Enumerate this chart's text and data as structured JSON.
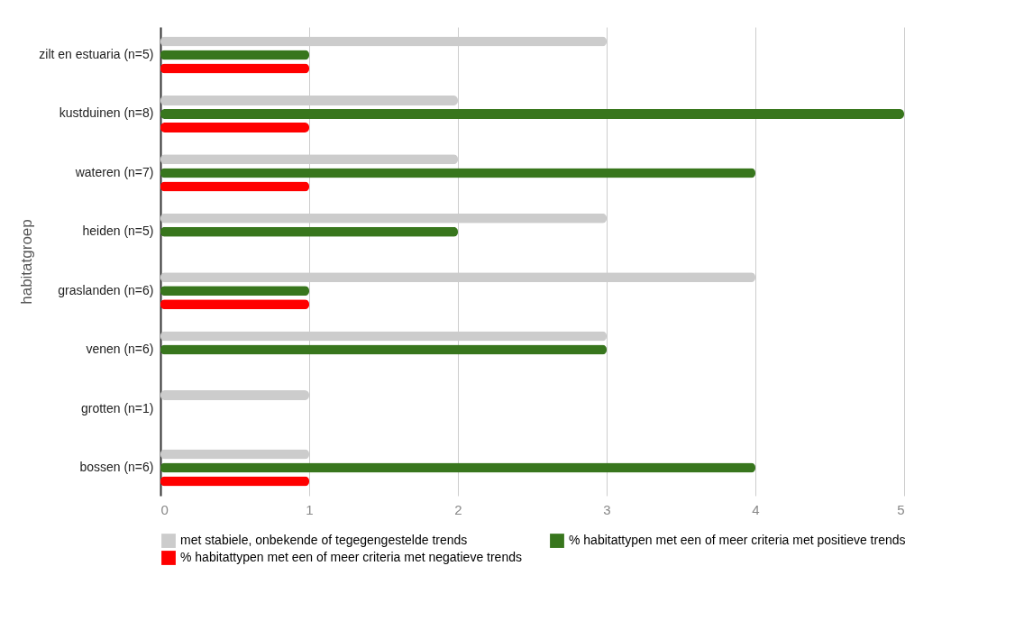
{
  "chart_data": {
    "type": "bar",
    "orientation": "horizontal",
    "ylabel": "habitatgroep",
    "categories": [
      "zilt en estuaria (n=5)",
      "kustduinen (n=8)",
      "wateren (n=7)",
      "heiden (n=5)",
      "graslanden (n=6)",
      "venen (n=6)",
      "grotten (n=1)",
      "bossen (n=6)"
    ],
    "series": [
      {
        "name": "met stabiele, onbekende of tegegengestelde trends",
        "color": "#cccccc",
        "values": [
          3,
          2,
          2,
          3,
          4,
          3,
          1,
          1
        ]
      },
      {
        "name": "% habitattypen met een of meer criteria met positieve trends",
        "color": "#38761d",
        "values": [
          1,
          5,
          4,
          2,
          1,
          3,
          null,
          4
        ]
      },
      {
        "name": "% habitattypen met een of meer criteria met negatieve trends",
        "color": "#ff0000",
        "values": [
          1,
          1,
          1,
          null,
          1,
          null,
          null,
          1
        ]
      }
    ],
    "xlim": [
      0,
      5
    ],
    "xticks": [
      0,
      1,
      2,
      3,
      4,
      5
    ],
    "grid": "x",
    "legend": "bottom"
  }
}
